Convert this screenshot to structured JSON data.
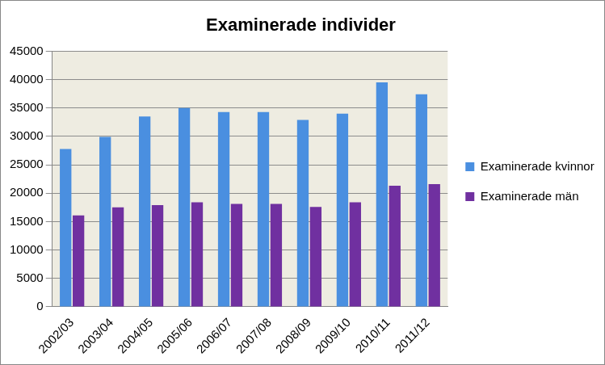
{
  "chart_data": {
    "type": "bar",
    "title": "Examinerade individer",
    "categories": [
      "2002/03",
      "2003/04",
      "2004/05",
      "2005/06",
      "2006/07",
      "2007/08",
      "2008/09",
      "2009/10",
      "2010/11",
      "2011/12"
    ],
    "series": [
      {
        "name": "Examinerade kvinnor",
        "color": "#4a8fe0",
        "values": [
          27800,
          29900,
          33500,
          35000,
          34300,
          34300,
          32900,
          34000,
          39500,
          37400
        ]
      },
      {
        "name": "Examinerade män",
        "color": "#7030a0",
        "values": [
          16100,
          17500,
          17900,
          18400,
          18100,
          18100,
          17600,
          18400,
          21300,
          21600
        ]
      }
    ],
    "ylim": [
      0,
      45000
    ],
    "yticks": [
      0,
      5000,
      10000,
      15000,
      20000,
      25000,
      30000,
      35000,
      40000,
      45000
    ],
    "grid": true,
    "legend": "right"
  }
}
